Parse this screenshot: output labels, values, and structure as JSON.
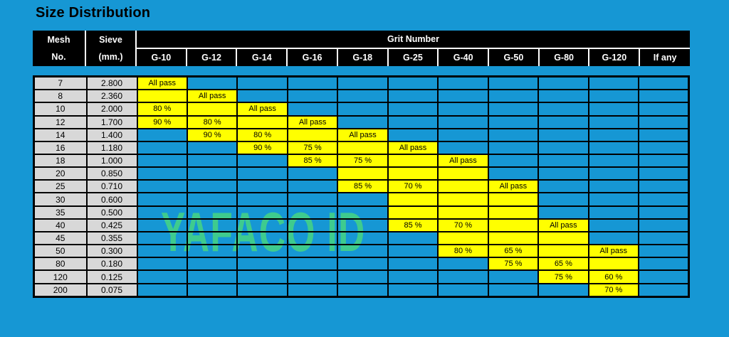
{
  "title": "Size Distribution",
  "watermark": "YAFACO ID",
  "colors": {
    "page_background": "#1697d4",
    "header_background": "#000000",
    "header_text": "#ffffff",
    "cell_highlight_yellow": "#ffff00",
    "cell_gray": "#d8d8d8",
    "grid_line": "#000000",
    "watermark_green": "#3ecb8e",
    "title_text": "#000000"
  },
  "header": {
    "mesh_line1": "Mesh",
    "mesh_line2": "No.",
    "sieve_line1": "Sieve",
    "sieve_line2": "(mm.)",
    "grit_group_label": "Grit Number"
  },
  "chart_data": {
    "type": "table",
    "title": "Size Distribution",
    "columns": [
      "Mesh No.",
      "Sieve (mm.)",
      "G-10",
      "G-12",
      "G-14",
      "G-16",
      "G-18",
      "G-25",
      "G-40",
      "G-50",
      "G-80",
      "G-120",
      "If any"
    ],
    "column_group": {
      "label": "Grit Number",
      "spans": [
        "G-10",
        "G-12",
        "G-14",
        "G-16",
        "G-18",
        "G-25",
        "G-40",
        "G-50",
        "G-80",
        "G-120",
        "If any"
      ]
    },
    "rows": [
      [
        "7",
        "2.800",
        "All pass",
        null,
        null,
        null,
        null,
        null,
        null,
        null,
        null,
        null,
        null
      ],
      [
        "8",
        "2.360",
        "",
        "All pass",
        null,
        null,
        null,
        null,
        null,
        null,
        null,
        null,
        null
      ],
      [
        "10",
        "2.000",
        "80 %",
        "",
        "All pass",
        null,
        null,
        null,
        null,
        null,
        null,
        null,
        null
      ],
      [
        "12",
        "1.700",
        "90 %",
        "80 %",
        "",
        "All pass",
        null,
        null,
        null,
        null,
        null,
        null,
        null
      ],
      [
        "14",
        "1.400",
        null,
        "90 %",
        "80 %",
        "",
        "All pass",
        null,
        null,
        null,
        null,
        null,
        null
      ],
      [
        "16",
        "1.180",
        null,
        null,
        "90 %",
        "75 %",
        "",
        "All pass",
        null,
        null,
        null,
        null,
        null
      ],
      [
        "18",
        "1.000",
        null,
        null,
        null,
        "85 %",
        "75 %",
        "",
        "All pass",
        null,
        null,
        null,
        null
      ],
      [
        "20",
        "0.850",
        null,
        null,
        null,
        null,
        "",
        "",
        "",
        null,
        null,
        null,
        null
      ],
      [
        "25",
        "0.710",
        null,
        null,
        null,
        null,
        "85 %",
        "70 %",
        "",
        "All pass",
        null,
        null,
        null
      ],
      [
        "30",
        "0.600",
        null,
        null,
        null,
        null,
        null,
        "",
        "",
        "",
        null,
        null,
        null
      ],
      [
        "35",
        "0.500",
        null,
        null,
        null,
        null,
        null,
        "",
        "",
        "",
        null,
        null,
        null
      ],
      [
        "40",
        "0.425",
        null,
        null,
        null,
        null,
        null,
        "85 %",
        "70 %",
        "",
        "All pass",
        null,
        null
      ],
      [
        "45",
        "0.355",
        null,
        null,
        null,
        null,
        null,
        null,
        "",
        "",
        "",
        null,
        null
      ],
      [
        "50",
        "0.300",
        null,
        null,
        null,
        null,
        null,
        null,
        "80 %",
        "65 %",
        "",
        "All pass",
        null
      ],
      [
        "80",
        "0.180",
        null,
        null,
        null,
        null,
        null,
        null,
        null,
        "75 %",
        "65 %",
        "",
        null
      ],
      [
        "120",
        "0.125",
        null,
        null,
        null,
        null,
        null,
        null,
        null,
        null,
        "75 %",
        "60 %",
        null
      ],
      [
        "200",
        "0.075",
        null,
        null,
        null,
        null,
        null,
        null,
        null,
        null,
        null,
        "70 %",
        null
      ]
    ],
    "cell_legend": {
      "null": "empty blue cell",
      "empty_string": "yellow highlighted empty cell",
      "text": "yellow highlighted cell with value"
    }
  }
}
